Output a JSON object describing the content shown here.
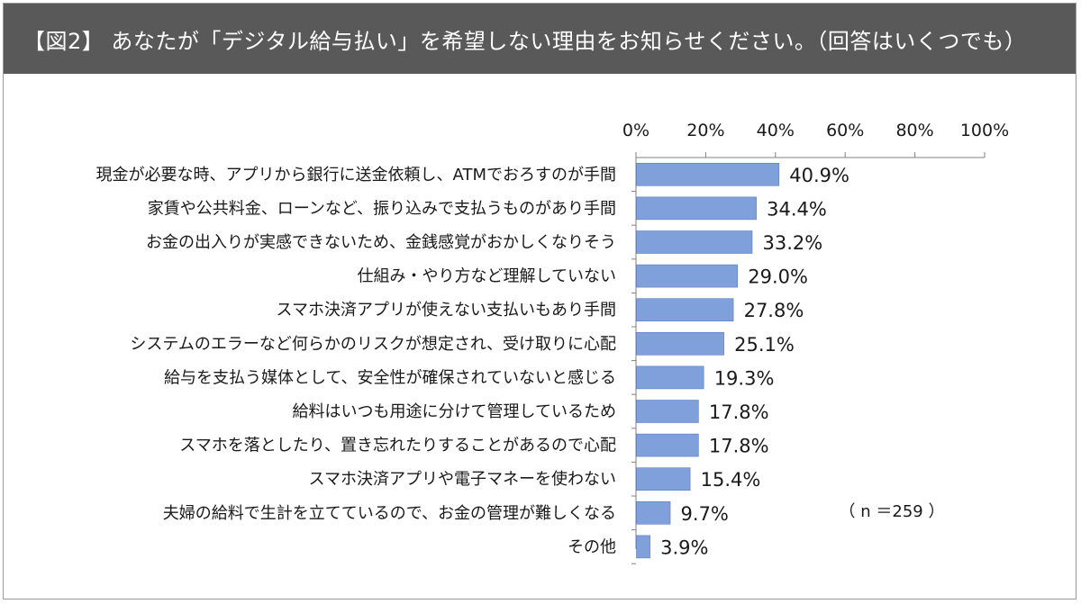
{
  "header": {
    "title": "【図2】 あなたが「デジタル給与払い」を希望しない理由をお知らせください。（回答はいくつでも）"
  },
  "note": "（ n ＝259 ）",
  "colors": {
    "header_bg": "#595959",
    "bar": "#7FA0DA",
    "bar_edge": "#5A7DC0",
    "axis": "#808080"
  },
  "chart_data": {
    "type": "bar",
    "orientation": "horizontal",
    "categories": [
      "現金が必要な時、アプリから銀行に送金依頼し、ATMでおろすのが手間",
      "家賃や公共料金、ローンなど、振り込みで支払うものがあり手間",
      "お金の出入りが実感できないため、金銭感覚がおかしくなりそう",
      "仕組み・やり方など理解していない",
      "スマホ決済アプリが使えない支払いもあり手間",
      "システムのエラーなど何らかのリスクが想定され、受け取りに心配",
      "給与を支払う媒体として、安全性が確保されていないと感じる",
      "給料はいつも用途に分けて管理しているため",
      "スマホを落としたり、置き忘れたりすることがあるので心配",
      "スマホ決済アプリや電子マネーを使わない",
      "夫婦の給料で生計を立てているので、お金の管理が難しくなる",
      "その他"
    ],
    "values": [
      40.9,
      34.4,
      33.2,
      29.0,
      27.8,
      25.1,
      19.3,
      17.8,
      17.8,
      15.4,
      9.7,
      3.9
    ],
    "value_labels": [
      "40.9%",
      "34.4%",
      "33.2%",
      "29.0%",
      "27.8%",
      "25.1%",
      "19.3%",
      "17.8%",
      "17.8%",
      "15.4%",
      "9.7%",
      "3.9%"
    ],
    "xlim": [
      0,
      100
    ],
    "xticks": [
      0,
      20,
      40,
      60,
      80,
      100
    ],
    "xtick_labels": [
      "0%",
      "20%",
      "40%",
      "60%",
      "80%",
      "100%"
    ],
    "axis_position": "top",
    "grid": false,
    "legend": "none"
  }
}
